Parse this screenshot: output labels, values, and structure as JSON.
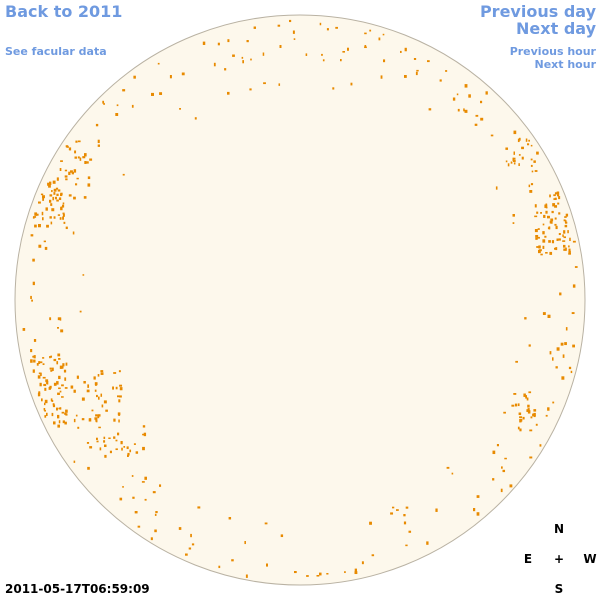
{
  "links": {
    "back": "Back to 2011",
    "previous_day": "Previous day",
    "next_day": "Next day",
    "see_facular_data": "See facular data",
    "previous_hour": "Previous hour",
    "next_hour": "Next hour"
  },
  "timestamp": "2011-05-17T06:59:09",
  "compass": {
    "north": "N",
    "east": "E",
    "center": "+",
    "west": "W",
    "south": "S"
  }
}
